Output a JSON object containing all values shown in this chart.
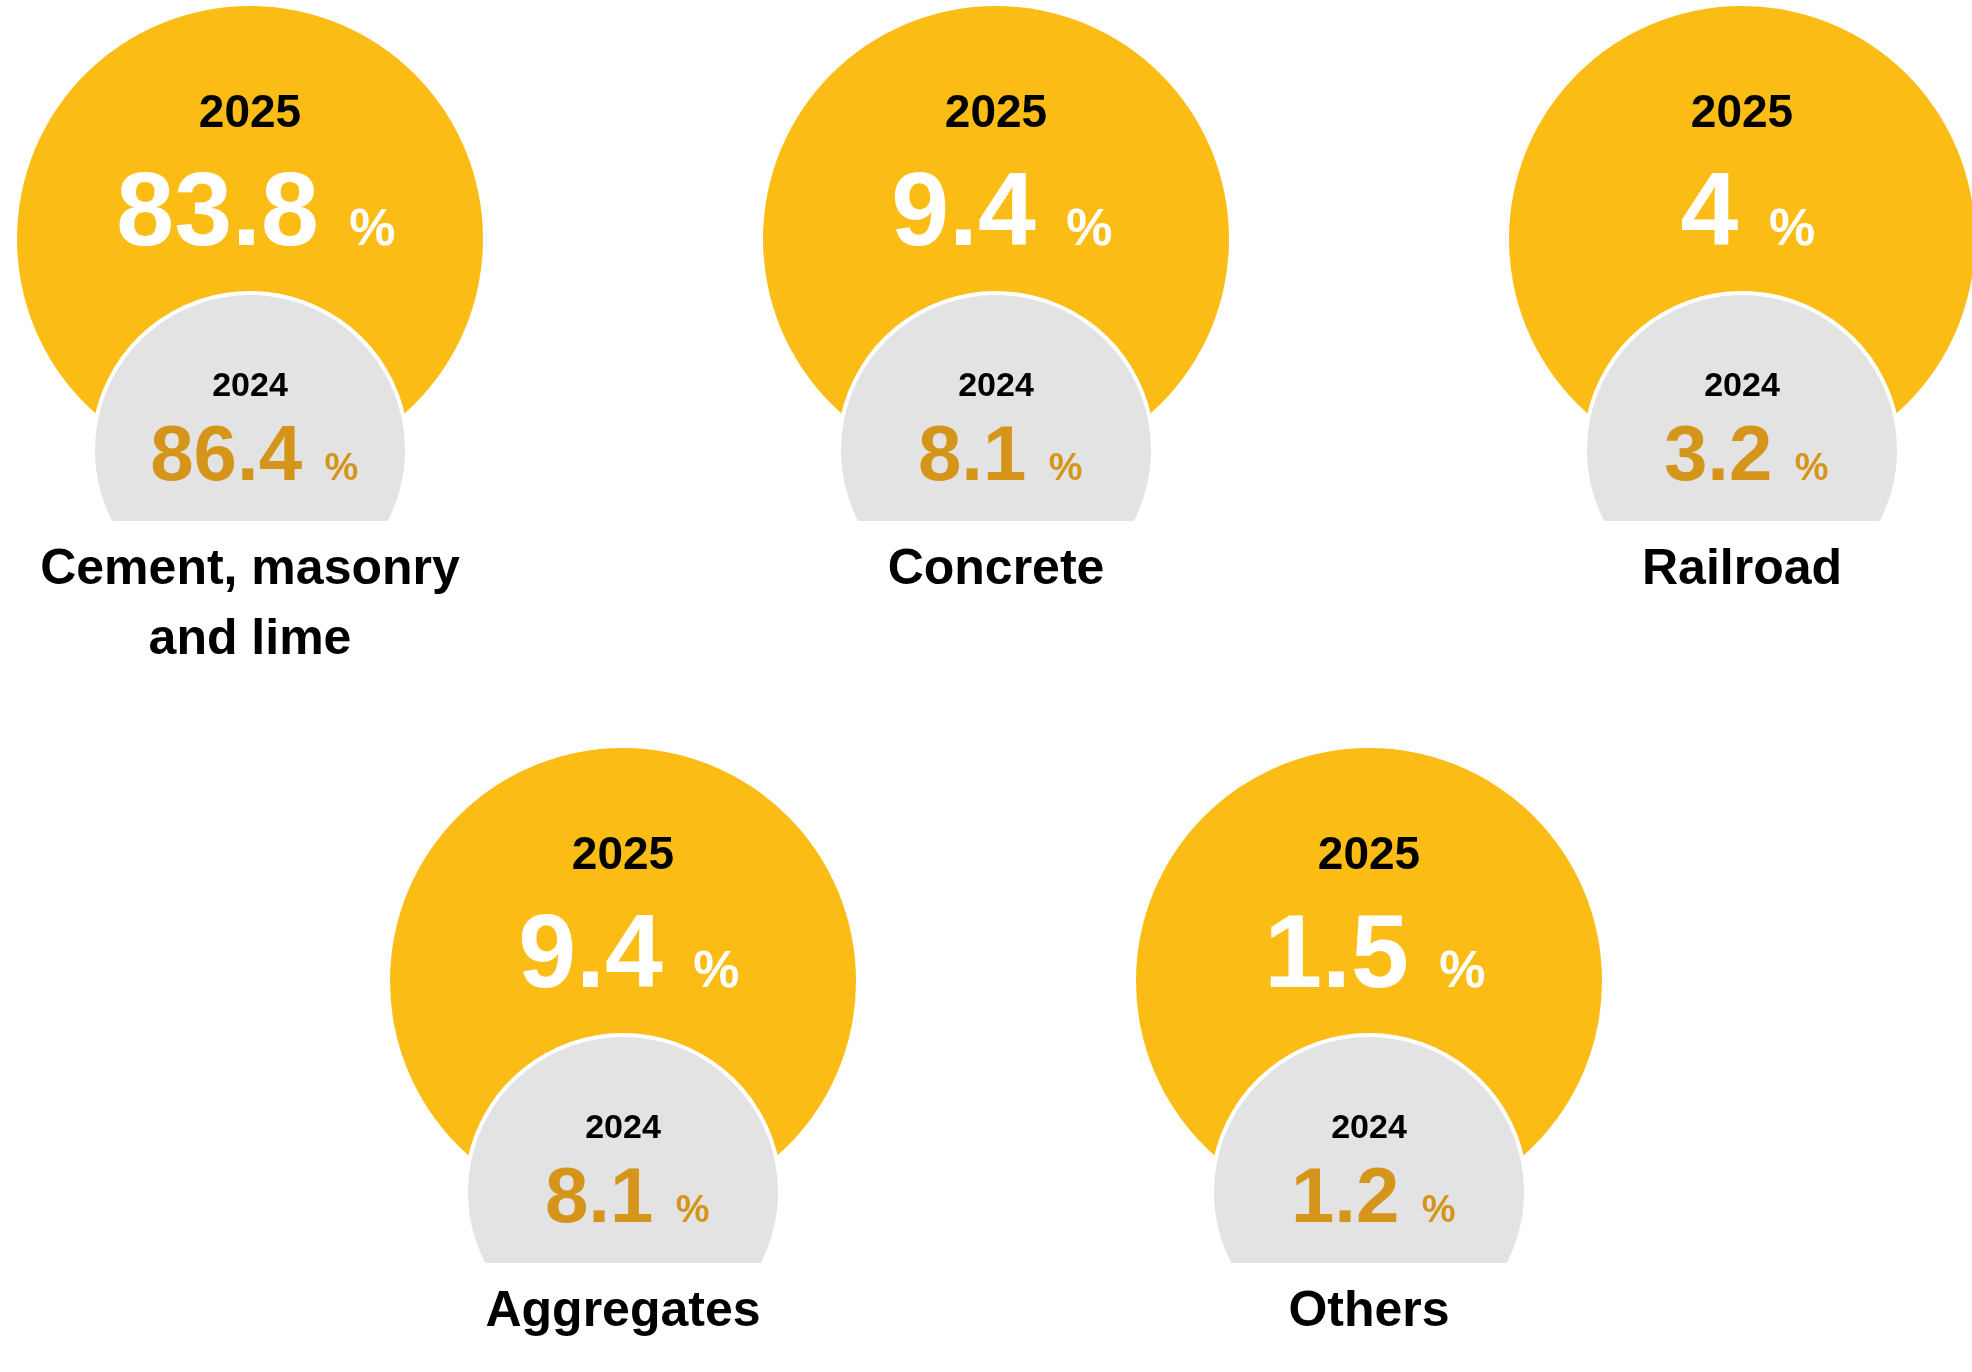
{
  "chart_data": {
    "type": "other",
    "categories": [
      "Cement, masonry and lime",
      "Concrete",
      "Railroad",
      "Aggregates",
      "Others"
    ],
    "series": [
      {
        "name": "2025",
        "color": "#fbbc15",
        "values": [
          83.8,
          9.4,
          4,
          9.4,
          1.5
        ],
        "value_labels": [
          "83.8 %",
          "9.4 %",
          "4 %",
          "9.4 %",
          "1.5 %"
        ]
      },
      {
        "name": "2024",
        "color": "#e3e3e3",
        "values": [
          86.4,
          8.1,
          3.2,
          8.1,
          1.2
        ],
        "value_labels": [
          "86.4 %",
          "8.1 %",
          "3.2 %",
          "8.1 %",
          "1.2 %"
        ]
      }
    ]
  }
}
